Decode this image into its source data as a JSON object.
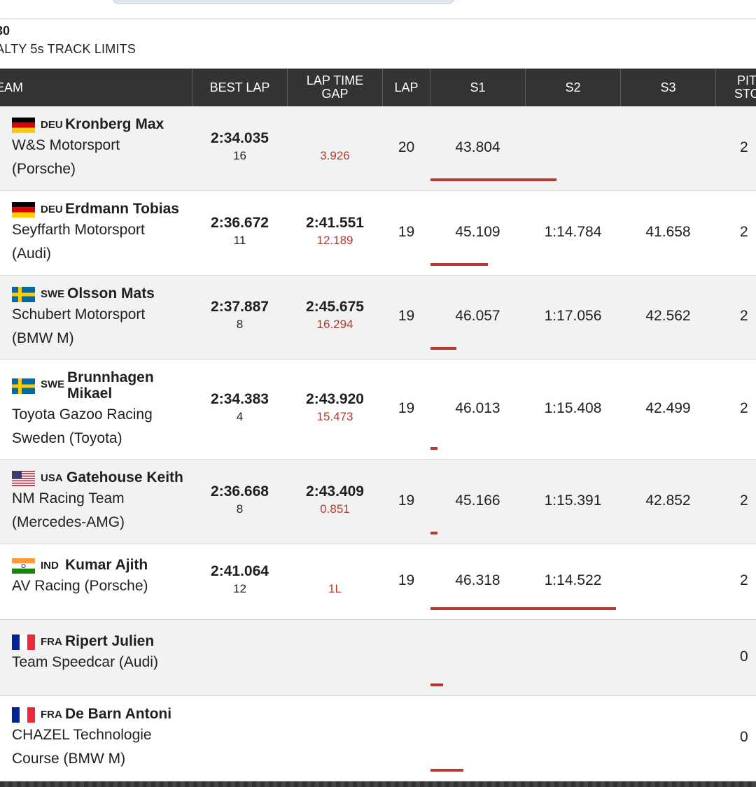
{
  "session": {
    "code": "30",
    "note": "ALTY 5s TRACK LIMITS"
  },
  "columns": {
    "team": "EAM",
    "best_lap": "BEST LAP",
    "gap_line1": "LAP TIME",
    "gap_line2": "GAP",
    "lap": "LAP",
    "s1": "S1",
    "s2": "S2",
    "s3": "S3",
    "pit_line1": "PIT",
    "pit_line2": "STOP"
  },
  "rows": [
    {
      "flag": "germany-flag",
      "country": "DEU",
      "driver": "Kronberg Max",
      "team1": "W&S Motorsport",
      "team2": "(Porsche)",
      "best_lap": "2:34.035",
      "best_lap_no": "16",
      "lap_time": "",
      "gap": "3.926",
      "lap": "20",
      "s1": "43.804",
      "s2": "",
      "s3": "",
      "pit": "2",
      "progress": 0.44
    },
    {
      "flag": "germany-flag",
      "country": "DEU",
      "driver": "Erdmann Tobias",
      "team1": "Seyffarth Motorsport",
      "team2": "(Audi)",
      "best_lap": "2:36.672",
      "best_lap_no": "11",
      "lap_time": "2:41.551",
      "gap": "12.189",
      "lap": "19",
      "s1": "45.109",
      "s2": "1:14.784",
      "s3": "41.658",
      "pit": "2",
      "progress": 0.2
    },
    {
      "flag": "sweden-flag",
      "country": "SWE",
      "driver": "Olsson Mats",
      "team1": "Schubert Motorsport",
      "team2": "(BMW M)",
      "best_lap": "2:37.887",
      "best_lap_no": "8",
      "lap_time": "2:45.675",
      "gap": "16.294",
      "lap": "19",
      "s1": "46.057",
      "s2": "1:17.056",
      "s3": "42.562",
      "pit": "2",
      "progress": 0.09
    },
    {
      "flag": "sweden-flag",
      "country": "SWE",
      "driver1": "Brunnhagen",
      "driver2": "Mikael",
      "team1": "Toyota Gazoo Racing",
      "team2": "Sweden (Toyota)",
      "best_lap": "2:34.383",
      "best_lap_no": "4",
      "lap_time": "2:43.920",
      "gap": "15.473",
      "lap": "19",
      "s1": "46.013",
      "s2": "1:15.408",
      "s3": "42.499",
      "pit": "2",
      "progress": 0.02
    },
    {
      "flag": "usa-flag",
      "country": "USA",
      "driver": "Gatehouse Keith",
      "team1": "NM Racing Team",
      "team2": "(Mercedes-AMG)",
      "best_lap": "2:36.668",
      "best_lap_no": "8",
      "lap_time": "2:43.409",
      "gap": "0.851",
      "lap": "19",
      "s1": "45.166",
      "s2": "1:15.391",
      "s3": "42.852",
      "pit": "2",
      "progress": 0.02
    },
    {
      "flag": "india-flag",
      "country": "IND",
      "driver": "Kumar Ajith",
      "team1": "AV Racing (Porsche)",
      "team2": "",
      "best_lap": "2:41.064",
      "best_lap_no": "12",
      "lap_time": "",
      "gap": "1L",
      "lap": "19",
      "s1": "46.318",
      "s2": "1:14.522",
      "s3": "",
      "pit": "2",
      "progress": 0.65
    },
    {
      "flag": "france-flag",
      "country": "FRA",
      "driver": "Ripert Julien",
      "team1": "Team Speedcar (Audi)",
      "team2": "",
      "best_lap": "",
      "best_lap_no": "",
      "lap_time": "",
      "gap": "",
      "lap": "",
      "s1": "",
      "s2": "",
      "s3": "",
      "pit": "0",
      "progress": 0.045
    },
    {
      "flag": "france-flag",
      "country": "FRA",
      "driver": "De Barn Antoni",
      "team1": "CHAZEL Technologie",
      "team2": "Course (BMW M)",
      "best_lap": "",
      "best_lap_no": "",
      "lap_time": "",
      "gap": "",
      "lap": "",
      "s1": "",
      "s2": "",
      "s3": "",
      "pit": "0",
      "progress": 0.115
    }
  ],
  "colors": {
    "header_bg": "#333333",
    "gap_red": "#b33a2e",
    "progress_bar": "#b8392e"
  }
}
